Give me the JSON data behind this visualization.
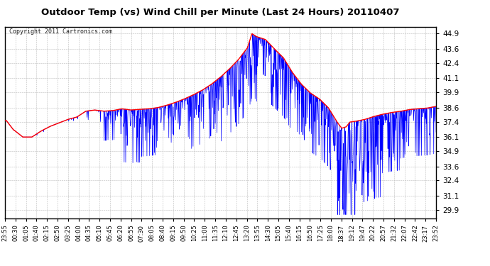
{
  "title": "Outdoor Temp (vs) Wind Chill per Minute (Last 24 Hours) 20110407",
  "copyright": "Copyright 2011 Cartronics.com",
  "yticks": [
    29.9,
    31.1,
    32.4,
    33.6,
    34.9,
    36.1,
    37.4,
    38.6,
    39.9,
    41.1,
    42.4,
    43.6,
    44.9
  ],
  "ymin": 29.2,
  "ymax": 45.5,
  "xtick_labels": [
    "23:55",
    "00:30",
    "01:05",
    "01:40",
    "02:15",
    "02:50",
    "03:25",
    "04:00",
    "04:35",
    "05:10",
    "05:45",
    "06:20",
    "06:55",
    "07:30",
    "08:05",
    "08:40",
    "09:15",
    "09:50",
    "10:25",
    "11:00",
    "11:35",
    "12:10",
    "12:45",
    "13:20",
    "13:55",
    "14:30",
    "15:05",
    "15:40",
    "16:15",
    "16:50",
    "17:25",
    "18:00",
    "18:37",
    "19:12",
    "19:47",
    "20:22",
    "20:57",
    "21:32",
    "22:07",
    "22:42",
    "23:17",
    "23:52"
  ],
  "bg_color": "#ffffff",
  "plot_bg_color": "#ffffff",
  "grid_color": "#bbbbbb",
  "red_line_color": "#ff0000",
  "blue_line_color": "#0000ff",
  "title_color": "#000000",
  "border_color": "#000000",
  "title_fontsize": 9.5,
  "copyright_fontsize": 6,
  "ytick_fontsize": 7.5,
  "xtick_fontsize": 6
}
